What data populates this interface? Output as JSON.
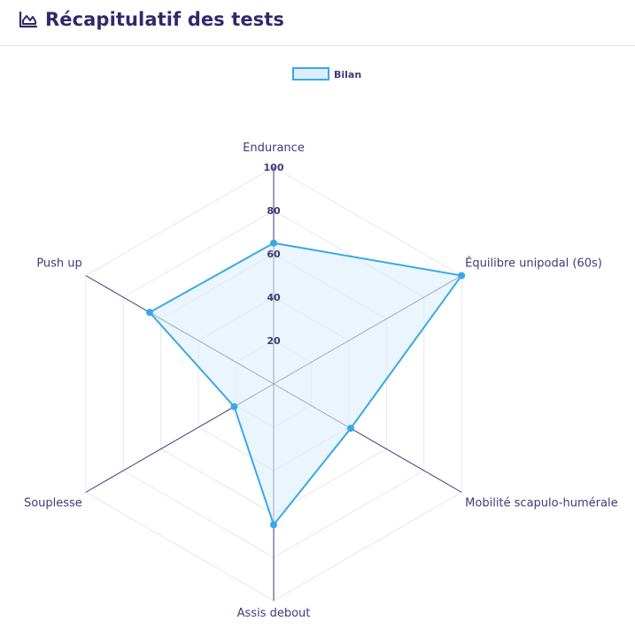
{
  "header": {
    "title": "Récapitulatif des tests",
    "icon": "area-chart-icon"
  },
  "colors": {
    "title": "#2e2a6b",
    "series_line": "#3aa8e4",
    "series_fill": "#ddeefb",
    "axis_line": "#3e3a7a",
    "grid_line": "#e6e6ee",
    "label_text": "#3e3a7a"
  },
  "chart_data": {
    "type": "radar",
    "title": "",
    "categories": [
      "Endurance",
      "Équilibre unipodal (60s)",
      "Mobilité scapulo-humérale",
      "Assis debout",
      "Souplesse",
      "Push up"
    ],
    "series": [
      {
        "name": "Bilan",
        "values": [
          65,
          100,
          41,
          65,
          21,
          66
        ]
      }
    ],
    "rlim": [
      0,
      100
    ],
    "ticks": [
      "20",
      "40",
      "60",
      "80",
      "100"
    ],
    "grid": true,
    "legend": "top-center"
  }
}
